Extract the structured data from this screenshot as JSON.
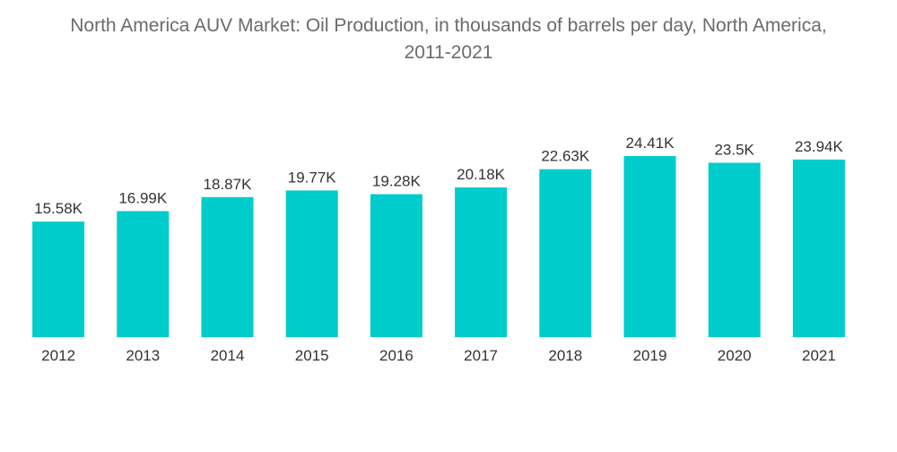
{
  "chart_data": {
    "type": "bar",
    "title_line1": "North America AUV Market: Oil Production, in thousands of barrels per day, North America,",
    "title_line2": "2011-2021",
    "categories": [
      "2012",
      "2013",
      "2014",
      "2015",
      "2016",
      "2017",
      "2018",
      "2019",
      "2020",
      "2021"
    ],
    "values": [
      15.58,
      16.99,
      18.87,
      19.77,
      19.28,
      20.18,
      22.63,
      24.41,
      23.5,
      23.94
    ],
    "data_labels": [
      "15.58K",
      "16.99K",
      "18.87K",
      "19.77K",
      "19.28K",
      "20.18K",
      "22.63K",
      "24.41K",
      "23.5K",
      "23.94K"
    ],
    "xlabel": "",
    "ylabel": "",
    "ylim": [
      0,
      24.41
    ],
    "grid": false,
    "bar_color": "#00CCCC"
  }
}
